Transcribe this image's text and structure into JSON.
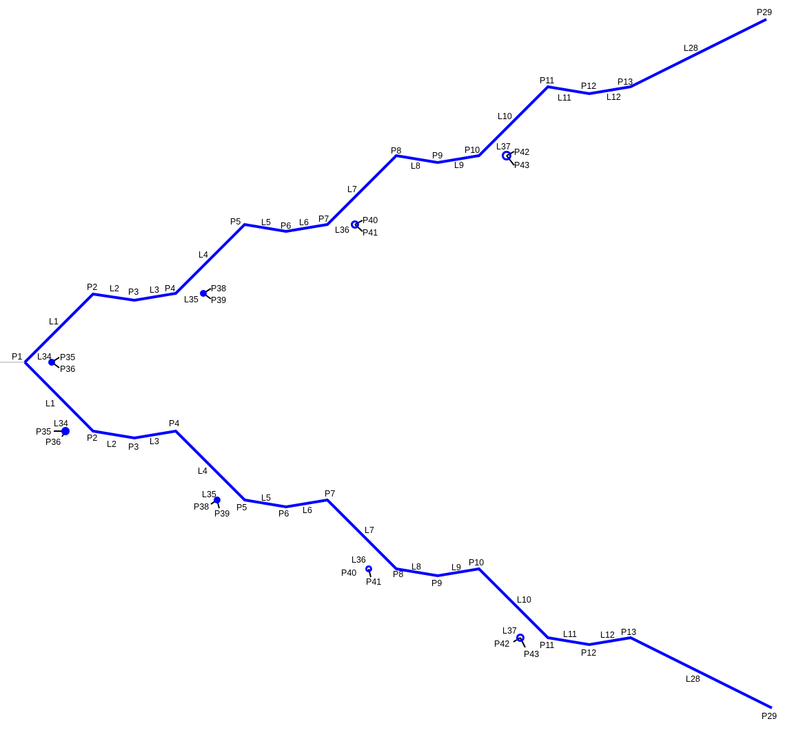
{
  "colors": {
    "path": "#0000ff",
    "leader": "#000000",
    "axis": "#aaaaaa",
    "background": "#ffffff"
  },
  "upper_branch": {
    "labels": [
      "P1",
      "L1",
      "P2",
      "L2",
      "P3",
      "L3",
      "P4",
      "L4",
      "P5",
      "L5",
      "P6",
      "L6",
      "P7",
      "L7",
      "P8",
      "L8",
      "P9",
      "L9",
      "P10",
      "L10",
      "P11",
      "L11",
      "P12",
      "L12",
      "P13",
      "L28",
      "P29",
      "L34",
      "P35",
      "P36",
      "L35",
      "P38",
      "P39",
      "L36",
      "P40",
      "P41",
      "L37",
      "P42",
      "P43"
    ]
  },
  "lower_branch": {
    "labels": [
      "L1",
      "L34",
      "P35",
      "P36",
      "P2",
      "L2",
      "P3",
      "L3",
      "P4",
      "L4",
      "L35",
      "P38",
      "P39",
      "P5",
      "L5",
      "P6",
      "L6",
      "P7",
      "L7",
      "L36",
      "P40",
      "P41",
      "P8",
      "L8",
      "L9",
      "P9",
      "P10",
      "L10",
      "L37",
      "P42",
      "P43",
      "P11",
      "L11",
      "L12",
      "P12",
      "P13",
      "L28",
      "P29"
    ]
  }
}
